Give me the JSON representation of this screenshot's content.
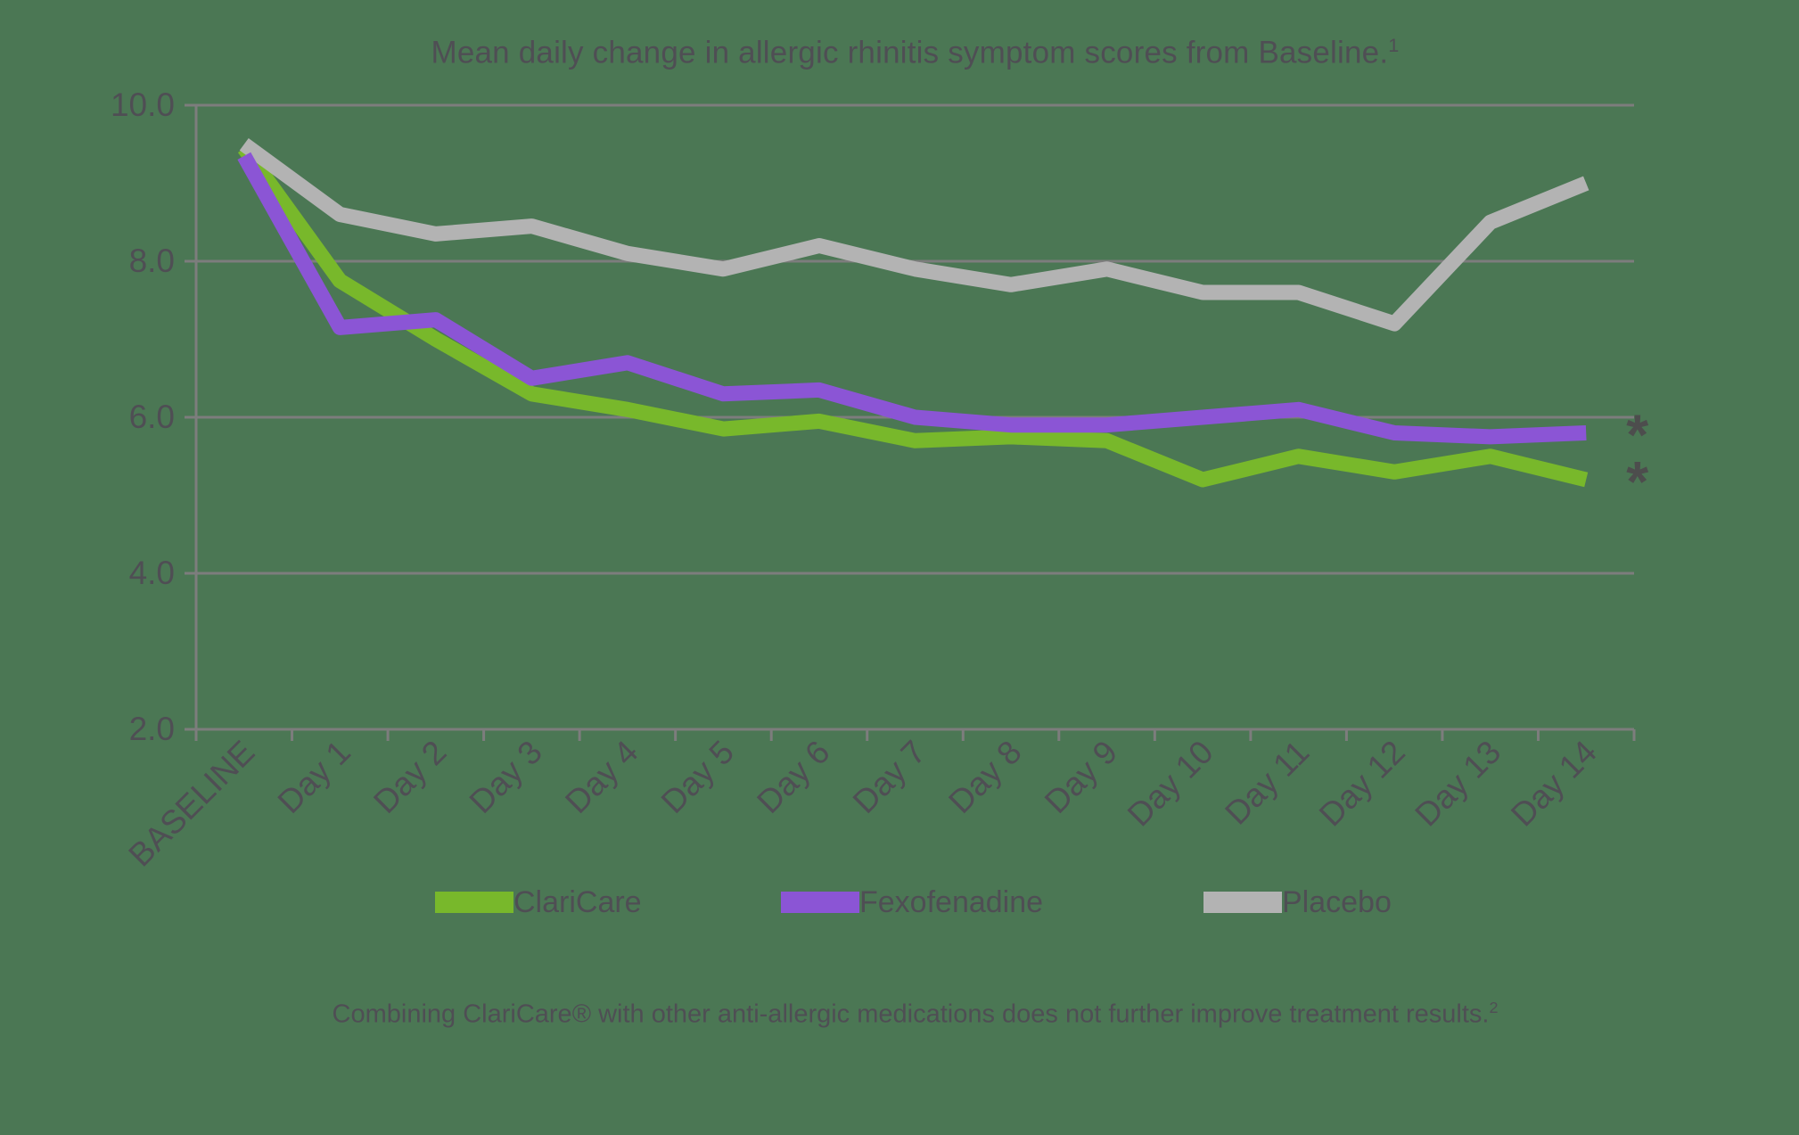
{
  "title": "Mean daily change in allergic rhinitis symptom scores from Baseline.",
  "title_superscript": "1",
  "footnote": "Combining ClariCare® with other anti-allergic medications does not further improve treatment results.",
  "footnote_superscript": "2",
  "colors": {
    "background": "#4b7754",
    "grid": "#7d7d7d",
    "axis": "#7d7d7d",
    "text": "#4f4e54",
    "annotation": "#4d4d4d",
    "claricare": "#78b82b",
    "fexofenadine": "#8b55d5",
    "placebo": "#b3b3b3"
  },
  "legend": {
    "items": [
      {
        "label": "ClariCare",
        "series": "claricare",
        "x": 488
      },
      {
        "label": "Fexofenadine",
        "series": "fexofenadine",
        "x": 876
      },
      {
        "label": "Placebo",
        "series": "placebo",
        "x": 1350
      }
    ]
  },
  "chart_data": {
    "type": "line",
    "title": "Mean daily change in allergic rhinitis symptom scores from Baseline.",
    "xlabel": "",
    "ylabel": "",
    "ylim": [
      2.0,
      10.0
    ],
    "ytick_step": 2.0,
    "ytick_labels": [
      "2.0",
      "4.0",
      "6.0",
      "8.0",
      "10.0"
    ],
    "grid": true,
    "legend_position": "bottom",
    "categories": [
      "BASELINE",
      "Day 1",
      "Day 2",
      "Day 3",
      "Day 4",
      "Day 5",
      "Day 6",
      "Day 7",
      "Day 8",
      "Day 9",
      "Day 10",
      "Day 11",
      "Day 12",
      "Day 13",
      "Day 14"
    ],
    "series": [
      {
        "name": "ClariCare",
        "color_key": "claricare",
        "values": [
          9.45,
          7.75,
          7.0,
          6.3,
          6.1,
          5.85,
          5.95,
          5.7,
          5.75,
          5.7,
          5.2,
          5.5,
          5.3,
          5.5,
          5.2
        ]
      },
      {
        "name": "Placebo",
        "color_key": "placebo",
        "values": [
          9.5,
          8.6,
          8.35,
          8.45,
          8.1,
          7.9,
          8.2,
          7.9,
          7.7,
          7.9,
          7.6,
          7.6,
          7.2,
          8.5,
          9.0
        ]
      },
      {
        "name": "Fexofenadine",
        "color_key": "fexofenadine",
        "values": [
          9.35,
          7.15,
          7.25,
          6.5,
          6.7,
          6.3,
          6.35,
          6.0,
          5.9,
          5.9,
          6.0,
          6.1,
          5.8,
          5.75,
          5.8
        ]
      }
    ],
    "annotations": [
      {
        "text": "*",
        "series": "Fexofenadine",
        "category": "Day 14"
      },
      {
        "text": "*",
        "series": "ClariCare",
        "category": "Day 14"
      }
    ]
  }
}
